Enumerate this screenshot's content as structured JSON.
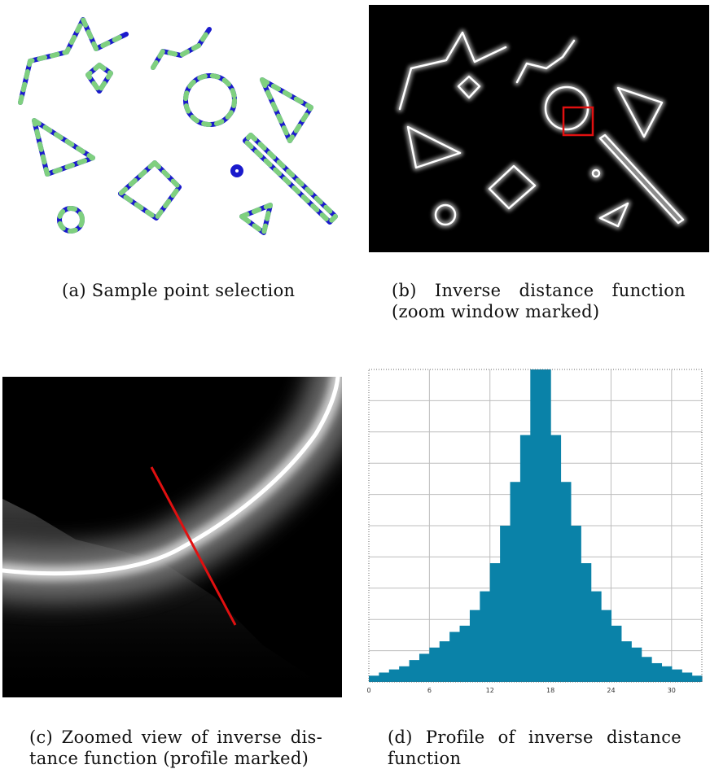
{
  "figure": {
    "panels": [
      {
        "id": "a",
        "caption": "(a) Sample point selection"
      },
      {
        "id": "b",
        "caption_line1": "(b)  Inverse  distance  function",
        "caption_line2": "(zoom window marked)"
      },
      {
        "id": "c",
        "caption_line1": "(c) Zoomed view of inverse dis-",
        "caption_line2": "tance function (profile marked)"
      },
      {
        "id": "d",
        "caption_line1": "(d)  Profile  of  inverse  distance",
        "caption_line2": "function"
      }
    ],
    "colors": {
      "outline_blue": "#1a1acc",
      "sample_green": "#7fd07f",
      "marker_red": "#e01010",
      "bar_fill": "#0a82a8",
      "glow_white": "#ffffff",
      "background_black": "#000000"
    }
  },
  "chart_data": {
    "type": "bar",
    "title": "",
    "xlabel": "",
    "ylabel": "",
    "x_ticks": [
      "0",
      "6",
      "12",
      "18",
      "24",
      "30"
    ],
    "xlim": [
      0,
      33
    ],
    "ylim": [
      0,
      1
    ],
    "grid": true,
    "categories": [
      0,
      1,
      2,
      3,
      4,
      5,
      6,
      7,
      8,
      9,
      10,
      11,
      12,
      13,
      14,
      15,
      16,
      17,
      18,
      19,
      20,
      21,
      22,
      23,
      24,
      25,
      26,
      27,
      28,
      29,
      30,
      31,
      32
    ],
    "values": [
      0.02,
      0.03,
      0.04,
      0.05,
      0.07,
      0.09,
      0.11,
      0.13,
      0.16,
      0.18,
      0.23,
      0.29,
      0.38,
      0.5,
      0.64,
      0.79,
      1.0,
      1.0,
      0.79,
      0.64,
      0.5,
      0.38,
      0.29,
      0.23,
      0.18,
      0.13,
      0.11,
      0.08,
      0.06,
      0.05,
      0.04,
      0.03,
      0.02
    ]
  }
}
